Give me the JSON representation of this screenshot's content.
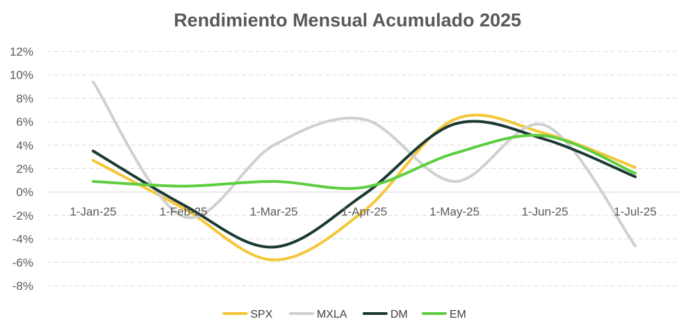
{
  "chart_data": {
    "type": "line",
    "title": "Rendimiento Mensual Acumulado 2025",
    "xlabel": "",
    "ylabel": "",
    "categories": [
      "1-Jan-25",
      "1-Feb-25",
      "1-Mar-25",
      "1-Apr-25",
      "1-May-25",
      "1-Jun-25",
      "1-Jul-25"
    ],
    "y_ticks": [
      "12%",
      "10%",
      "8%",
      "6%",
      "4%",
      "2%",
      "0%",
      "-2%",
      "-4%",
      "-6%",
      "-8%"
    ],
    "ylim": [
      -8,
      12
    ],
    "grid": true,
    "legend_position": "bottom",
    "series": [
      {
        "name": "SPX",
        "color": "#F5C637",
        "values": [
          2.7,
          -1.4,
          -5.8,
          -1.6,
          6.2,
          5.0,
          2.1
        ]
      },
      {
        "name": "MXLA",
        "color": "#D0D0D0",
        "values": [
          9.4,
          -2.1,
          4.0,
          6.2,
          0.9,
          5.7,
          -4.6
        ]
      },
      {
        "name": "DM",
        "color": "#1B3A33",
        "values": [
          3.5,
          -1.1,
          -4.7,
          -0.2,
          5.8,
          4.5,
          1.3
        ]
      },
      {
        "name": "EM",
        "color": "#5DCE3F",
        "values": [
          0.9,
          0.5,
          0.9,
          0.4,
          3.3,
          4.8,
          1.6
        ]
      }
    ]
  }
}
